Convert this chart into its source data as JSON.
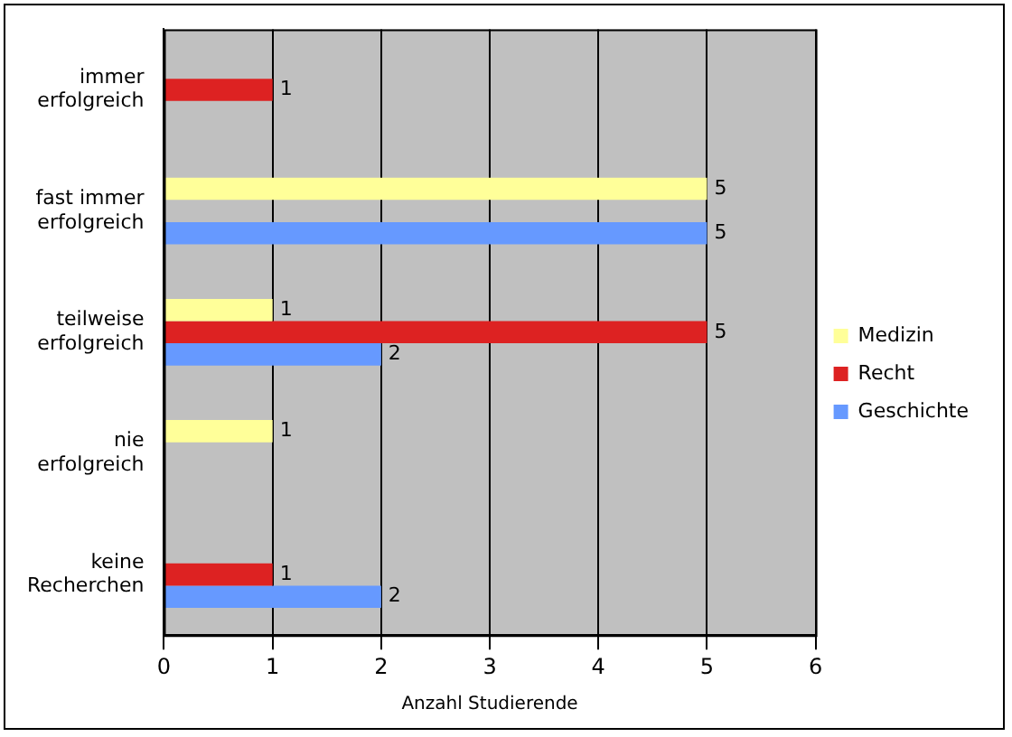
{
  "chart_data": {
    "type": "bar",
    "orientation": "horizontal",
    "xlabel": "Anzahl Studierende",
    "categories": [
      "immer erfolgreich",
      "fast immer erfolgreich",
      "teilweise erfolgreich",
      "nie erfolgreich",
      "keine Recherchen"
    ],
    "series": [
      {
        "name": "Medizin",
        "color": "#ffff99",
        "values": [
          null,
          5,
          1,
          1,
          null
        ]
      },
      {
        "name": "Recht",
        "color": "#dd2222",
        "values": [
          1,
          null,
          5,
          null,
          1
        ]
      },
      {
        "name": "Geschichte",
        "color": "#6699ff",
        "values": [
          null,
          5,
          2,
          null,
          2
        ]
      }
    ],
    "xlim": [
      0,
      6
    ],
    "xticks": [
      0,
      1,
      2,
      3,
      4,
      5,
      6
    ],
    "grid": "x",
    "legend": "right",
    "data_labels": true
  }
}
